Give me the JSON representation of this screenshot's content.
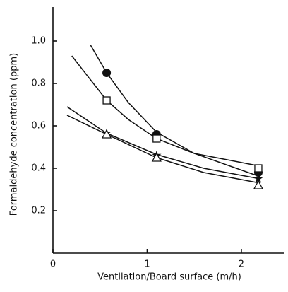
{
  "chart_data": {
    "type": "scatter",
    "x_label": "Ventilation/Board surface (m/h)",
    "y_label": "Formaldehyde concentration (ppm)",
    "xlim": [
      0,
      2.45
    ],
    "ylim": [
      0,
      1.16
    ],
    "xticks": [
      0,
      1,
      2
    ],
    "yticks": [
      0.2,
      0.4,
      0.6,
      0.8,
      {
        "value": 1.0,
        "label": "1.0"
      }
    ],
    "series": [
      {
        "marker": "circle-filled",
        "color": "#111",
        "x": [
          0.57,
          1.1,
          2.18
        ],
        "values": [
          0.85,
          0.56,
          0.38
        ],
        "curve": {
          "x": [
            0.4,
            0.57,
            0.8,
            1.1,
            1.5,
            2.2
          ],
          "values": [
            0.98,
            0.85,
            0.71,
            0.57,
            0.47,
            0.36
          ]
        }
      },
      {
        "marker": "square-open",
        "color": "#111",
        "x": [
          0.57,
          1.1,
          2.18
        ],
        "values": [
          0.72,
          0.54,
          0.4
        ],
        "curve": {
          "x": [
            0.2,
            0.57,
            0.8,
            1.1,
            1.5,
            2.2
          ],
          "values": [
            0.93,
            0.72,
            0.63,
            0.54,
            0.47,
            0.41
          ]
        }
      },
      {
        "marker": "star",
        "color": "#111",
        "x": [
          0.57,
          1.1,
          2.18
        ],
        "values": [
          0.565,
          0.46,
          0.35
        ],
        "curve": {
          "x": [
            0.15,
            0.57,
            1.1,
            1.6,
            2.2
          ],
          "values": [
            0.69,
            0.565,
            0.465,
            0.4,
            0.35
          ]
        }
      },
      {
        "marker": "triangle",
        "color": "#111",
        "x": [
          0.57,
          1.1,
          2.18
        ],
        "values": [
          0.56,
          0.45,
          0.32
        ],
        "curve": {
          "x": [
            0.15,
            0.57,
            1.1,
            1.6,
            2.2
          ],
          "values": [
            0.65,
            0.56,
            0.45,
            0.38,
            0.33
          ]
        }
      }
    ]
  }
}
